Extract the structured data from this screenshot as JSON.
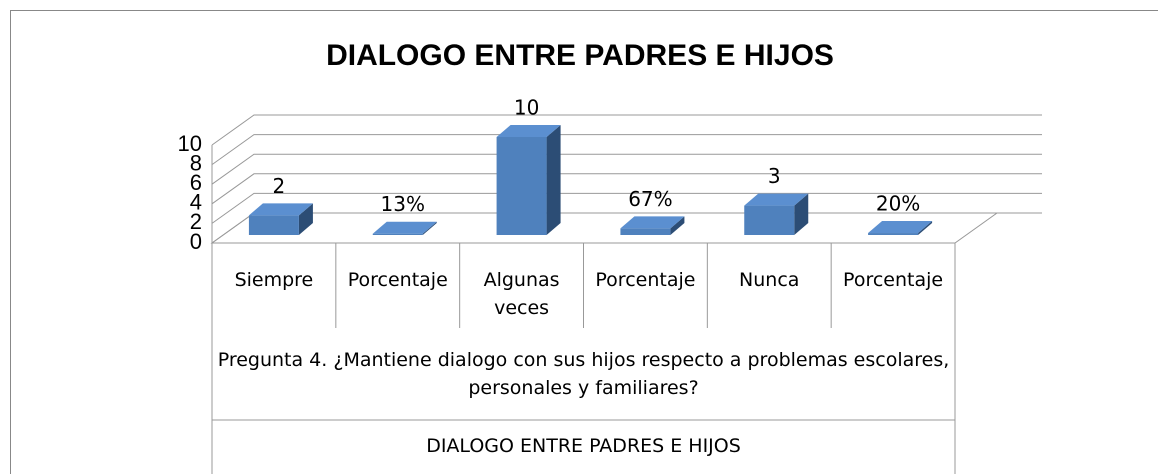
{
  "chart_data": {
    "type": "bar3d",
    "title": "DIALOGO ENTRE PADRES E HIJOS",
    "categories": [
      "Siempre",
      "Porcentaje",
      "Algunas veces",
      "Porcentaje",
      "Nunca",
      "Porcentaje"
    ],
    "values": [
      2,
      0.13,
      10,
      0.67,
      3,
      0.2
    ],
    "value_labels": [
      "2",
      "13%",
      "10",
      "67%",
      "3",
      "20%"
    ],
    "category_groups": [
      "Pregunta 4. ¿Mantiene dialogo con sus hijos respecto a problemas escolares, personales y familiares?",
      "DIALOGO ENTRE PADRES E HIJOS"
    ],
    "color": "#4f81bd",
    "ylim": [
      0,
      10
    ],
    "yticks": [
      0,
      2,
      4,
      6,
      8,
      10
    ],
    "grid": true
  }
}
